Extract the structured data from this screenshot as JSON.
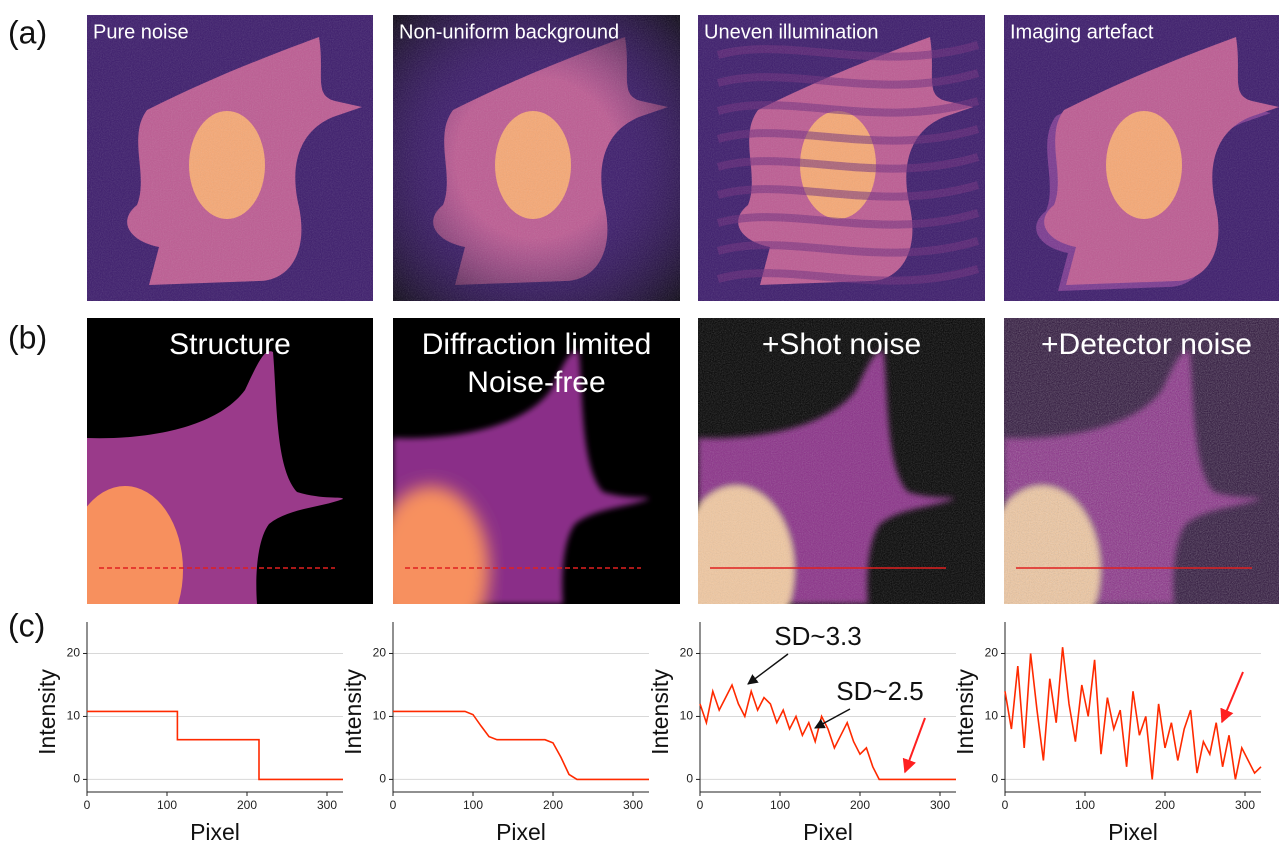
{
  "figure": {
    "panel_labels": [
      "(a)",
      "(b)",
      "(c)"
    ],
    "row_a": [
      "Pure noise",
      "Non-uniform background",
      "Uneven illumination",
      "Imaging artefact"
    ],
    "row_b": [
      [
        "Structure"
      ],
      [
        "Diffraction limited",
        "Noise-free"
      ],
      [
        "+Shot noise"
      ],
      [
        "+Detector noise"
      ]
    ]
  },
  "chart_data": [
    {
      "type": "line",
      "x_label": "Pixel",
      "y_label": "Intensity",
      "xlim": [
        0,
        320
      ],
      "ylim": [
        -2,
        25
      ],
      "xticks": [
        0,
        100,
        200,
        300
      ],
      "yticks": [
        0,
        10,
        20
      ],
      "grid": true,
      "series": [
        {
          "color": "#ff2a00",
          "x": [
            0,
            113,
            113,
            215,
            215,
            320
          ],
          "values": [
            10.8,
            10.8,
            6.3,
            6.3,
            0,
            0
          ]
        }
      ]
    },
    {
      "type": "line",
      "x_label": "Pixel",
      "y_label": "Intensity",
      "xlim": [
        0,
        320
      ],
      "ylim": [
        -2,
        25
      ],
      "xticks": [
        0,
        100,
        200,
        300
      ],
      "yticks": [
        0,
        10,
        20
      ],
      "grid": true,
      "series": [
        {
          "color": "#ff2a00",
          "x": [
            0,
            90,
            100,
            110,
            120,
            130,
            190,
            200,
            210,
            220,
            230,
            320
          ],
          "values": [
            10.8,
            10.8,
            10.3,
            8.5,
            6.8,
            6.3,
            6.3,
            5.8,
            3.5,
            0.8,
            0,
            0
          ]
        }
      ]
    },
    {
      "type": "line",
      "x_label": "Pixel",
      "y_label": "Intensity",
      "xlim": [
        0,
        320
      ],
      "ylim": [
        -2,
        25
      ],
      "xticks": [
        0,
        100,
        200,
        300
      ],
      "yticks": [
        0,
        10,
        20
      ],
      "grid": true,
      "annotations": [
        {
          "text": "SD~3.3"
        },
        {
          "text": "SD~2.5"
        }
      ],
      "series": [
        {
          "color": "#ff2a00",
          "x": [
            0,
            8,
            16,
            24,
            32,
            40,
            48,
            56,
            64,
            72,
            80,
            88,
            96,
            104,
            112,
            120,
            128,
            136,
            144,
            152,
            160,
            168,
            176,
            184,
            192,
            200,
            208,
            216,
            224,
            232,
            240,
            248,
            256,
            264,
            272,
            280,
            288,
            296,
            304,
            312,
            320
          ],
          "values": [
            12,
            9,
            14,
            11,
            13,
            15,
            12,
            10,
            14,
            11,
            13,
            12,
            9,
            11,
            8,
            10,
            7,
            9,
            6,
            10,
            8,
            5,
            7,
            9,
            6,
            4,
            5,
            2,
            0,
            0,
            0,
            0,
            0,
            0,
            0,
            0,
            0,
            0,
            0,
            0,
            0
          ]
        }
      ]
    },
    {
      "type": "line",
      "x_label": "Pixel",
      "y_label": "Intensity",
      "xlim": [
        0,
        320
      ],
      "ylim": [
        -2,
        25
      ],
      "xticks": [
        0,
        100,
        200,
        300
      ],
      "yticks": [
        0,
        10,
        20
      ],
      "grid": true,
      "series": [
        {
          "color": "#ff2a00",
          "x": [
            0,
            8,
            16,
            24,
            32,
            40,
            48,
            56,
            64,
            72,
            80,
            88,
            96,
            104,
            112,
            120,
            128,
            136,
            144,
            152,
            160,
            168,
            176,
            184,
            192,
            200,
            208,
            216,
            224,
            232,
            240,
            248,
            256,
            264,
            272,
            280,
            288,
            296,
            304,
            312,
            320
          ],
          "values": [
            14,
            8,
            18,
            5,
            20,
            11,
            3,
            16,
            9,
            21,
            12,
            6,
            15,
            10,
            19,
            4,
            13,
            8,
            11,
            2,
            14,
            7,
            10,
            0,
            12,
            5,
            9,
            3,
            8,
            11,
            1,
            6,
            4,
            9,
            2,
            7,
            0,
            5,
            3,
            1,
            2
          ]
        }
      ]
    }
  ]
}
